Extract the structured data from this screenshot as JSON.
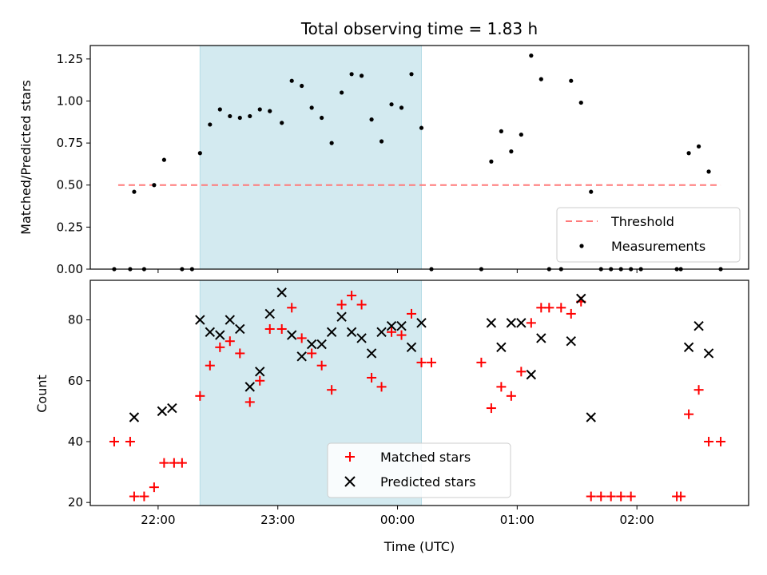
{
  "chart_data": [
    {
      "type": "scatter",
      "title": "Total observing time = 1.83 h",
      "ylabel": "Matched/Predicted stars",
      "xlabel": "",
      "ylim": [
        0,
        1.33
      ],
      "y_ticks": [
        "0.00",
        "0.25",
        "0.50",
        "0.75",
        "1.00",
        "1.25"
      ],
      "x_ticks": [
        "22:00",
        "23:00",
        "00:00",
        "01:00",
        "02:00"
      ],
      "shaded_interval": [
        "22:21",
        "00:12"
      ],
      "shade_color": "#d3eaf0",
      "threshold": {
        "name": "Threshold",
        "value": 0.5,
        "from": "21:40",
        "to": "02:42",
        "color": "#ff7a7a"
      },
      "series": [
        {
          "name": "Measurements",
          "color": "#000000",
          "points": [
            [
              "21:38",
              0.0
            ],
            [
              "21:46",
              0.0
            ],
            [
              "21:48",
              0.46
            ],
            [
              "21:53",
              0.0
            ],
            [
              "21:58",
              0.5
            ],
            [
              "22:03",
              0.65
            ],
            [
              "22:12",
              0.0
            ],
            [
              "22:17",
              0.0
            ],
            [
              "22:21",
              0.69
            ],
            [
              "22:26",
              0.86
            ],
            [
              "22:31",
              0.95
            ],
            [
              "22:36",
              0.91
            ],
            [
              "22:41",
              0.9
            ],
            [
              "22:46",
              0.91
            ],
            [
              "22:51",
              0.95
            ],
            [
              "22:56",
              0.94
            ],
            [
              "23:02",
              0.87
            ],
            [
              "23:07",
              1.12
            ],
            [
              "23:12",
              1.09
            ],
            [
              "23:17",
              0.96
            ],
            [
              "23:22",
              0.9
            ],
            [
              "23:27",
              0.75
            ],
            [
              "23:32",
              1.05
            ],
            [
              "23:37",
              1.16
            ],
            [
              "23:42",
              1.15
            ],
            [
              "23:47",
              0.89
            ],
            [
              "23:52",
              0.76
            ],
            [
              "23:57",
              0.98
            ],
            [
              "00:02",
              0.96
            ],
            [
              "00:07",
              1.16
            ],
            [
              "00:12",
              0.84
            ],
            [
              "00:17",
              0.0
            ],
            [
              "00:42",
              0.0
            ],
            [
              "00:47",
              0.64
            ],
            [
              "00:52",
              0.82
            ],
            [
              "00:57",
              0.7
            ],
            [
              "01:02",
              0.8
            ],
            [
              "01:07",
              1.27
            ],
            [
              "01:12",
              1.13
            ],
            [
              "01:16",
              0.0
            ],
            [
              "01:22",
              0.0
            ],
            [
              "01:27",
              1.12
            ],
            [
              "01:32",
              0.99
            ],
            [
              "01:37",
              0.46
            ],
            [
              "01:42",
              0.0
            ],
            [
              "01:47",
              0.0
            ],
            [
              "01:52",
              0.0
            ],
            [
              "01:57",
              0.0
            ],
            [
              "02:02",
              0.0
            ],
            [
              "02:20",
              0.0
            ],
            [
              "02:22",
              0.0
            ],
            [
              "02:26",
              0.69
            ],
            [
              "02:31",
              0.73
            ],
            [
              "02:36",
              0.58
            ],
            [
              "02:42",
              0.0
            ]
          ]
        }
      ]
    },
    {
      "type": "scatter",
      "title": "",
      "ylabel": "Count",
      "xlabel": "Time (UTC)",
      "ylim": [
        19,
        93
      ],
      "y_ticks": [
        "20",
        "40",
        "60",
        "80"
      ],
      "x_ticks": [
        "22:00",
        "23:00",
        "00:00",
        "01:00",
        "02:00"
      ],
      "shaded_interval": [
        "22:21",
        "00:12"
      ],
      "shade_color": "#d3eaf0",
      "series": [
        {
          "name": "Matched stars",
          "color": "#ff0000",
          "marker": "plus",
          "points": [
            [
              "21:38",
              40
            ],
            [
              "21:46",
              40
            ],
            [
              "21:48",
              22
            ],
            [
              "21:53",
              22
            ],
            [
              "21:58",
              25
            ],
            [
              "22:03",
              33
            ],
            [
              "22:08",
              33
            ],
            [
              "22:12",
              33
            ],
            [
              "22:21",
              55
            ],
            [
              "22:26",
              65
            ],
            [
              "22:31",
              71
            ],
            [
              "22:36",
              73
            ],
            [
              "22:41",
              69
            ],
            [
              "22:46",
              53
            ],
            [
              "22:51",
              60
            ],
            [
              "22:56",
              77
            ],
            [
              "23:02",
              77
            ],
            [
              "23:07",
              84
            ],
            [
              "23:12",
              74
            ],
            [
              "23:17",
              69
            ],
            [
              "23:22",
              65
            ],
            [
              "23:27",
              57
            ],
            [
              "23:32",
              85
            ],
            [
              "23:37",
              88
            ],
            [
              "23:42",
              85
            ],
            [
              "23:47",
              61
            ],
            [
              "23:52",
              58
            ],
            [
              "23:57",
              76
            ],
            [
              "00:02",
              75
            ],
            [
              "00:07",
              82
            ],
            [
              "00:12",
              66
            ],
            [
              "00:17",
              66
            ],
            [
              "00:42",
              66
            ],
            [
              "00:47",
              51
            ],
            [
              "00:52",
              58
            ],
            [
              "00:57",
              55
            ],
            [
              "01:02",
              63
            ],
            [
              "01:07",
              79
            ],
            [
              "01:12",
              84
            ],
            [
              "01:16",
              84
            ],
            [
              "01:22",
              84
            ],
            [
              "01:27",
              82
            ],
            [
              "01:32",
              86
            ],
            [
              "01:37",
              22
            ],
            [
              "01:42",
              22
            ],
            [
              "01:47",
              22
            ],
            [
              "01:52",
              22
            ],
            [
              "01:57",
              22
            ],
            [
              "02:20",
              22
            ],
            [
              "02:22",
              22
            ],
            [
              "02:26",
              49
            ],
            [
              "02:31",
              57
            ],
            [
              "02:36",
              40
            ],
            [
              "02:42",
              40
            ]
          ]
        },
        {
          "name": "Predicted stars",
          "color": "#000000",
          "marker": "x",
          "points": [
            [
              "21:48",
              48
            ],
            [
              "22:02",
              50
            ],
            [
              "22:07",
              51
            ],
            [
              "22:21",
              80
            ],
            [
              "22:26",
              76
            ],
            [
              "22:31",
              75
            ],
            [
              "22:36",
              80
            ],
            [
              "22:41",
              77
            ],
            [
              "22:46",
              58
            ],
            [
              "22:51",
              63
            ],
            [
              "22:56",
              82
            ],
            [
              "23:02",
              89
            ],
            [
              "23:07",
              75
            ],
            [
              "23:12",
              68
            ],
            [
              "23:17",
              72
            ],
            [
              "23:22",
              72
            ],
            [
              "23:27",
              76
            ],
            [
              "23:32",
              81
            ],
            [
              "23:37",
              76
            ],
            [
              "23:42",
              74
            ],
            [
              "23:47",
              69
            ],
            [
              "23:52",
              76
            ],
            [
              "23:57",
              78
            ],
            [
              "00:02",
              78
            ],
            [
              "00:07",
              71
            ],
            [
              "00:12",
              79
            ],
            [
              "00:47",
              79
            ],
            [
              "00:52",
              71
            ],
            [
              "00:57",
              79
            ],
            [
              "01:02",
              79
            ],
            [
              "01:07",
              62
            ],
            [
              "01:12",
              74
            ],
            [
              "01:27",
              73
            ],
            [
              "01:32",
              87
            ],
            [
              "01:37",
              48
            ],
            [
              "02:26",
              71
            ],
            [
              "02:31",
              78
            ],
            [
              "02:36",
              69
            ]
          ]
        }
      ]
    }
  ]
}
